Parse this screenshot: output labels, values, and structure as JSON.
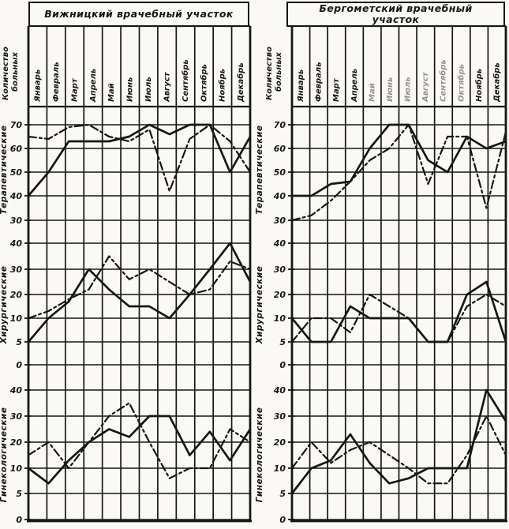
{
  "palette": {
    "ink": "#161616",
    "paper": "#faf9f5"
  },
  "y_axis_title": "Количество больных",
  "y_axis_title_lines": [
    "Количество",
    "больных"
  ],
  "months": [
    "Январь",
    "Февраль",
    "Март",
    "Апрель",
    "Май",
    "Июнь",
    "Июль",
    "Август",
    "Сентябрь",
    "Октябрь",
    "Ноябрь",
    "Декабрь"
  ],
  "chart_data": [
    {
      "type": "line",
      "title": "Вижницкий врачебный участок",
      "categories": [
        "Январь",
        "Февраль",
        "Март",
        "Апрель",
        "Май",
        "Июнь",
        "Июль",
        "Август",
        "Сентябрь",
        "Октябрь",
        "Ноябрь",
        "Декабрь"
      ],
      "legend": "none",
      "grid": "on",
      "panels": [
        {
          "label": "Терапевтические",
          "y_ticks": [
            70,
            60,
            50,
            40,
            30
          ],
          "ylim": [
            30,
            78
          ],
          "series": [
            {
              "name": "solid-line",
              "style": "solid",
              "values": [
                40,
                50,
                77,
                77,
                77,
                75,
                70,
                74,
                70,
                70,
                50,
                75
              ]
            },
            {
              "name": "dash-dot-line",
              "style": "dashdot",
              "values": [
                65,
                76,
                71,
                70,
                75,
                77,
                72,
                42,
                76,
                70,
                77,
                50
              ]
            }
          ]
        },
        {
          "label": "Хирургические",
          "y_ticks": [
            40,
            30,
            20,
            10,
            5,
            0
          ],
          "ylim": [
            0,
            40
          ],
          "series": [
            {
              "name": "solid-line",
              "style": "solid",
              "values": [
                5,
                10,
                17,
                30,
                22,
                15,
                15,
                10,
                20,
                30,
                40,
                25
              ]
            },
            {
              "name": "dash-dot-line",
              "style": "dashdot",
              "values": [
                10,
                13,
                18,
                22,
                35,
                26,
                30,
                25,
                20,
                22,
                33,
                30
              ]
            }
          ]
        },
        {
          "label": "Гинекологические",
          "y_ticks": [
            40,
            30,
            20,
            10,
            5,
            0
          ],
          "ylim": [
            0,
            40
          ],
          "series": [
            {
              "name": "solid-line",
              "style": "solid",
              "values": [
                10,
                7,
                13,
                20,
                25,
                22,
                30,
                30,
                15,
                24,
                13,
                25
              ]
            },
            {
              "name": "dash-dot-line",
              "style": "dashdot",
              "values": [
                15,
                20,
                10,
                20,
                30,
                35,
                20,
                8,
                10,
                10,
                25,
                20
              ]
            }
          ]
        }
      ]
    },
    {
      "type": "line",
      "title": "Бергометский врачебный участок",
      "categories": [
        "Январь",
        "Февраль",
        "Март",
        "Апрель",
        "Май",
        "Июнь",
        "Июль",
        "Август",
        "Сентябрь",
        "Октябрь",
        "Ноябрь",
        "Декабрь"
      ],
      "legend": "none",
      "grid": "on",
      "faded_month_indices": [
        4,
        5,
        6,
        7,
        8,
        9
      ],
      "panels": [
        {
          "label": "Терапевтические",
          "y_ticks": [
            70,
            60,
            50,
            40,
            30
          ],
          "ylim": [
            30,
            78
          ],
          "series": [
            {
              "name": "solid-line",
              "style": "solid",
              "values": [
                40,
                40,
                45,
                46,
                60,
                70,
                70,
                55,
                50,
                65,
                60,
                77
              ]
            },
            {
              "name": "dash-dot-line",
              "style": "dashdot",
              "values": [
                30,
                32,
                38,
                46,
                55,
                60,
                70,
                45,
                75,
                65,
                35,
                73
              ]
            }
          ]
        },
        {
          "label": "Хирургические",
          "y_ticks": [
            40,
            30,
            20,
            10,
            5,
            0
          ],
          "ylim": [
            0,
            40
          ],
          "series": [
            {
              "name": "solid-line",
              "style": "solid",
              "values": [
                10,
                5,
                5,
                15,
                10,
                10,
                10,
                5,
                5,
                20,
                25,
                5
              ]
            },
            {
              "name": "dash-dot-line",
              "style": "dashdot",
              "values": [
                5,
                10,
                10,
                7,
                20,
                15,
                10,
                5,
                5,
                15,
                20,
                15
              ]
            }
          ]
        },
        {
          "label": "Гинекологические",
          "y_ticks": [
            40,
            30,
            20,
            10,
            5,
            0
          ],
          "ylim": [
            0,
            40
          ],
          "series": [
            {
              "name": "solid-line",
              "style": "solid",
              "values": [
                5,
                10,
                13,
                23,
                12,
                7,
                8,
                10,
                10,
                10,
                40,
                28
              ]
            },
            {
              "name": "dash-dot-line",
              "style": "dashdot",
              "values": [
                10,
                20,
                12,
                17,
                20,
                15,
                10,
                7,
                7,
                15,
                30,
                15
              ]
            }
          ]
        }
      ]
    }
  ]
}
